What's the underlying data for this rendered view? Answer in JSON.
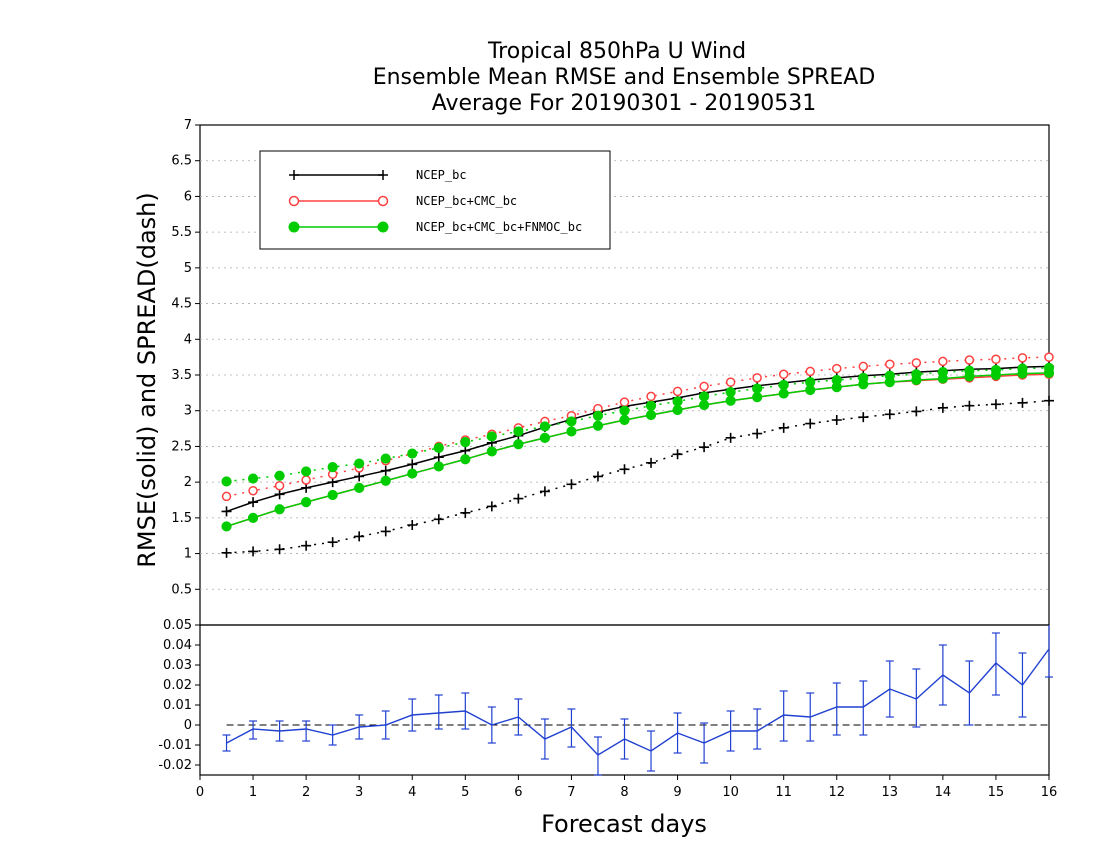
{
  "title": {
    "line1": "Tropical 850hPa U Wind",
    "line2": "Ensemble Mean RMSE and Ensemble SPREAD",
    "line3": "Average For 20190301 - 20190531"
  },
  "chart_data": [
    {
      "type": "line",
      "ylabel": "RMSE(solid) and SPREAD(dash)",
      "xlim": [
        0,
        16
      ],
      "ylim": [
        0,
        7
      ],
      "yticks": [
        "0.5",
        "1",
        "1.5",
        "2",
        "2.5",
        "3",
        "3.5",
        "4",
        "4.5",
        "5",
        "5.5",
        "6",
        "6.5",
        "7"
      ],
      "grid": true,
      "legend_position": "top-left",
      "x": [
        0.5,
        1,
        1.5,
        2,
        2.5,
        3,
        3.5,
        4,
        4.5,
        5,
        5.5,
        6,
        6.5,
        7,
        7.5,
        8,
        8.5,
        9,
        9.5,
        10,
        10.5,
        11,
        11.5,
        12,
        12.5,
        13,
        13.5,
        14,
        14.5,
        15,
        15.5,
        16
      ],
      "series": [
        {
          "name": "NCEP_bc",
          "color": "#000000",
          "marker": "plus",
          "rmse": [
            1.59,
            1.72,
            1.83,
            1.92,
            2.0,
            2.08,
            2.16,
            2.25,
            2.35,
            2.44,
            2.55,
            2.65,
            2.77,
            2.88,
            2.98,
            3.06,
            3.12,
            3.18,
            3.25,
            3.3,
            3.35,
            3.39,
            3.43,
            3.46,
            3.49,
            3.51,
            3.54,
            3.56,
            3.58,
            3.59,
            3.61,
            3.62
          ],
          "spread": [
            1.01,
            1.03,
            1.06,
            1.11,
            1.16,
            1.24,
            1.31,
            1.4,
            1.48,
            1.57,
            1.66,
            1.77,
            1.87,
            1.97,
            2.08,
            2.18,
            2.27,
            2.39,
            2.49,
            2.62,
            2.68,
            2.76,
            2.82,
            2.87,
            2.91,
            2.95,
            2.99,
            3.04,
            3.07,
            3.09,
            3.11,
            3.14
          ]
        },
        {
          "name": "NCEP_bc+CMC_bc",
          "color": "#ff4040",
          "marker": "open-circle",
          "rmse": [
            1.38,
            1.5,
            1.62,
            1.72,
            1.82,
            1.92,
            2.02,
            2.12,
            2.22,
            2.32,
            2.43,
            2.53,
            2.62,
            2.71,
            2.79,
            2.87,
            2.94,
            3.01,
            3.08,
            3.14,
            3.19,
            3.24,
            3.29,
            3.33,
            3.37,
            3.4,
            3.42,
            3.44,
            3.46,
            3.48,
            3.5,
            3.51
          ],
          "spread": [
            1.8,
            1.88,
            1.95,
            2.03,
            2.11,
            2.2,
            2.3,
            2.4,
            2.5,
            2.59,
            2.67,
            2.76,
            2.85,
            2.93,
            3.03,
            3.12,
            3.2,
            3.27,
            3.34,
            3.4,
            3.46,
            3.51,
            3.55,
            3.59,
            3.62,
            3.65,
            3.67,
            3.69,
            3.71,
            3.72,
            3.74,
            3.75
          ]
        },
        {
          "name": "NCEP_bc+CMC_bc+FNMOC_bc",
          "color": "#00cc00",
          "marker": "filled-circle",
          "rmse": [
            1.38,
            1.5,
            1.62,
            1.72,
            1.82,
            1.92,
            2.02,
            2.12,
            2.22,
            2.32,
            2.43,
            2.53,
            2.62,
            2.71,
            2.79,
            2.87,
            2.94,
            3.01,
            3.08,
            3.14,
            3.19,
            3.24,
            3.29,
            3.33,
            3.37,
            3.4,
            3.43,
            3.45,
            3.48,
            3.5,
            3.52,
            3.53
          ],
          "spread": [
            2.01,
            2.05,
            2.09,
            2.15,
            2.21,
            2.26,
            2.33,
            2.4,
            2.48,
            2.56,
            2.64,
            2.71,
            2.78,
            2.85,
            2.93,
            3.0,
            3.07,
            3.13,
            3.2,
            3.26,
            3.31,
            3.36,
            3.4,
            3.43,
            3.46,
            3.49,
            3.51,
            3.54,
            3.56,
            3.57,
            3.59,
            3.6
          ]
        }
      ]
    },
    {
      "type": "line",
      "xlabel": "Forecast days",
      "xlim": [
        0,
        16
      ],
      "xticks": [
        "0",
        "1",
        "2",
        "3",
        "4",
        "5",
        "6",
        "7",
        "8",
        "9",
        "10",
        "11",
        "12",
        "13",
        "14",
        "15",
        "16"
      ],
      "ylim": [
        -0.025,
        0.05
      ],
      "yticks": [
        "-0.02",
        "-0.01",
        "0",
        "0.01",
        "0.02",
        "0.03",
        "0.04",
        "0.05"
      ],
      "reference_line": 0,
      "series": [
        {
          "color": "#2040d0",
          "values": [
            -0.009,
            -0.002,
            -0.003,
            -0.002,
            -0.005,
            -0.001,
            0.0,
            0.005,
            0.006,
            0.007,
            0.0,
            0.004,
            -0.007,
            -0.001,
            -0.015,
            -0.007,
            -0.013,
            -0.004,
            -0.009,
            -0.003,
            -0.003,
            0.005,
            0.004,
            0.009,
            0.009,
            0.018,
            0.013,
            0.025,
            0.016,
            0.031,
            0.02,
            0.038
          ],
          "err_low": [
            -0.013,
            -0.007,
            -0.008,
            -0.008,
            -0.01,
            -0.007,
            -0.007,
            -0.003,
            -0.002,
            -0.002,
            -0.009,
            -0.005,
            -0.017,
            -0.011,
            -0.025,
            -0.017,
            -0.023,
            -0.014,
            -0.019,
            -0.013,
            -0.012,
            -0.008,
            -0.008,
            -0.005,
            -0.005,
            0.004,
            -0.001,
            0.01,
            0.0,
            0.015,
            0.004,
            0.024
          ],
          "err_high": [
            -0.005,
            0.002,
            0.002,
            0.002,
            0.0,
            0.005,
            0.007,
            0.013,
            0.015,
            0.016,
            0.009,
            0.013,
            0.003,
            0.008,
            -0.006,
            0.003,
            -0.003,
            0.006,
            0.001,
            0.007,
            0.008,
            0.017,
            0.016,
            0.021,
            0.022,
            0.032,
            0.028,
            0.04,
            0.032,
            0.046,
            0.036,
            0.052
          ]
        }
      ]
    }
  ]
}
